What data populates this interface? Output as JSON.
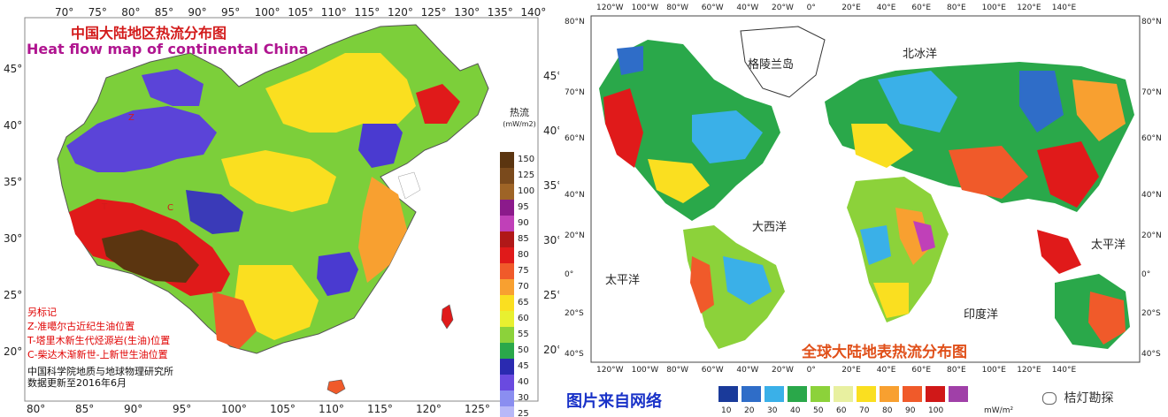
{
  "left_panel": {
    "title_cn": "中国大陆地区热流分布图",
    "title_en": "Heat flow map of continental China",
    "top_ticks": [
      "70°",
      "75°",
      "80°",
      "85°",
      "90°",
      "95°",
      "100°",
      "105°",
      "110°",
      "115°",
      "120°",
      "125°",
      "130°",
      "135°",
      "140°"
    ],
    "bottom_ticks": [
      "80°",
      "85°",
      "90°",
      "95°",
      "100°",
      "105°",
      "110°",
      "115°",
      "120°",
      "125°"
    ],
    "left_ticks": [
      "45°",
      "40°",
      "35°",
      "30°",
      "25°",
      "20°"
    ],
    "right_ticks": [
      "45°",
      "40°",
      "35°",
      "30°",
      "25°",
      "20°"
    ],
    "markers": [
      "Z",
      "T",
      "C"
    ],
    "legend_title": "热流",
    "legend_unit": "(mW/m2)",
    "legend": [
      {
        "label": "150",
        "color": "#5b3510"
      },
      {
        "label": "125",
        "color": "#7a4a1c"
      },
      {
        "label": "100",
        "color": "#9e6426"
      },
      {
        "label": "95",
        "color": "#8b1a8b"
      },
      {
        "label": "90",
        "color": "#c040b8"
      },
      {
        "label": "85",
        "color": "#b01818"
      },
      {
        "label": "80",
        "color": "#e01a1a"
      },
      {
        "label": "75",
        "color": "#f05a2a"
      },
      {
        "label": "70",
        "color": "#f8a030"
      },
      {
        "label": "65",
        "color": "#fadf20"
      },
      {
        "label": "60",
        "color": "#e8f030"
      },
      {
        "label": "55",
        "color": "#8cd23a"
      },
      {
        "label": "50",
        "color": "#2aa84a"
      },
      {
        "label": "45",
        "color": "#2a2ab0"
      },
      {
        "label": "40",
        "color": "#6a4ae0"
      },
      {
        "label": "30",
        "color": "#8a8ef0"
      },
      {
        "label": "25",
        "color": "#b8b8f8"
      }
    ],
    "notes": [
      "另标记",
      "Z-准噶尔古近纪生油位置",
      "T-塔里木新生代烃源岩(生油)位置",
      "C-柴达木渐新世-上新世生油位置"
    ],
    "institution": "中国科学院地质与地球物理研究所",
    "update": "数据更新至2016年6月"
  },
  "right_panel": {
    "top_ticks": [
      "120°W",
      "100°W",
      "80°W",
      "60°W",
      "40°W",
      "20°W",
      "0°",
      "20°E",
      "40°E",
      "60°E",
      "80°E",
      "100°E",
      "120°E",
      "140°E"
    ],
    "bottom_ticks": [
      "120°W",
      "100°W",
      "80°W",
      "60°W",
      "40°W",
      "20°W",
      "0°",
      "20°E",
      "40°E",
      "60°E",
      "80°E",
      "100°E",
      "120°E",
      "140°E"
    ],
    "lat_ticks": [
      "80°N",
      "70°N",
      "60°N",
      "40°N",
      "20°N",
      "0°",
      "20°S",
      "40°S"
    ],
    "oceans": {
      "greenland": "格陵兰岛",
      "arctic": "北冰洋",
      "atlantic": "大西洋",
      "pacific_w": "太平洋",
      "pacific_e": "太平洋",
      "indian": "印度洋"
    },
    "title": "全球大陆地表热流分布图",
    "legend": [
      {
        "label": "10",
        "color": "#1a3a9a"
      },
      {
        "label": "20",
        "color": "#2f6dc8"
      },
      {
        "label": "30",
        "color": "#3ab0e8"
      },
      {
        "label": "40",
        "color": "#2aa84a"
      },
      {
        "label": "50",
        "color": "#8cd23a"
      },
      {
        "label": "60",
        "color": "#e8f0a0"
      },
      {
        "label": "70",
        "color": "#fadf20"
      },
      {
        "label": "80",
        "color": "#f8a030"
      },
      {
        "label": "90",
        "color": "#f05a2a"
      },
      {
        "label": "100",
        "color": "#d01818"
      },
      {
        "label": "",
        "color": "#a040a8"
      }
    ],
    "unit": "mW/m²"
  },
  "source": "图片来自网络",
  "logo_text": "桔灯勘探"
}
